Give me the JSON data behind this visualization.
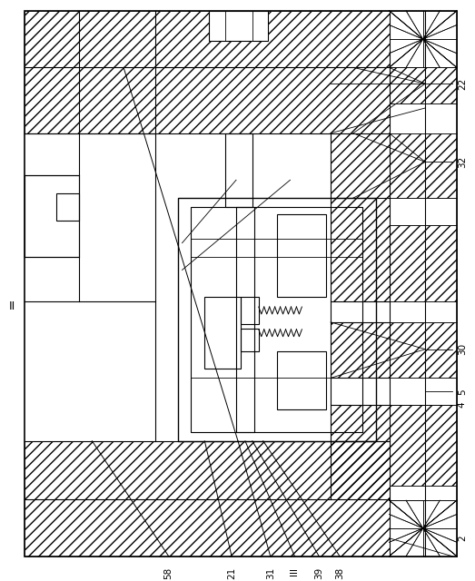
{
  "bg_color": "#ffffff",
  "figsize": [
    5.23,
    6.4
  ],
  "dpi": 100
}
